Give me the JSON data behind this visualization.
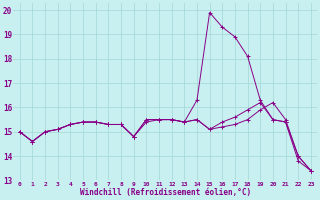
{
  "xlabel": "Windchill (Refroidissement éolien,°C)",
  "ylabel": "",
  "xlim": [
    -0.5,
    23.5
  ],
  "ylim": [
    13.0,
    20.3
  ],
  "yticks": [
    13,
    14,
    15,
    16,
    17,
    18,
    19,
    20
  ],
  "xticks": [
    0,
    1,
    2,
    3,
    4,
    5,
    6,
    7,
    8,
    9,
    10,
    11,
    12,
    13,
    14,
    15,
    16,
    17,
    18,
    19,
    20,
    21,
    22,
    23
  ],
  "bg_color": "#c8f0f0",
  "grid_color": "#a8dada",
  "line_color": "#880088",
  "line1_y": [
    15.0,
    14.6,
    15.0,
    15.1,
    15.3,
    15.4,
    15.4,
    15.3,
    15.3,
    14.8,
    15.5,
    15.5,
    15.5,
    15.4,
    16.3,
    19.9,
    19.3,
    18.9,
    18.1,
    16.3,
    15.5,
    15.4,
    13.8,
    13.4
  ],
  "line2_y": [
    15.0,
    14.6,
    15.0,
    15.1,
    15.3,
    15.4,
    15.4,
    15.3,
    15.3,
    14.8,
    15.5,
    15.5,
    15.5,
    15.4,
    15.5,
    15.1,
    15.2,
    15.3,
    15.5,
    15.9,
    16.2,
    15.5,
    14.0,
    13.4
  ],
  "line3_y": [
    15.0,
    14.6,
    15.0,
    15.1,
    15.3,
    15.4,
    15.4,
    15.3,
    15.3,
    14.8,
    15.4,
    15.5,
    15.5,
    15.4,
    15.5,
    15.1,
    15.4,
    15.6,
    15.9,
    16.2,
    15.5,
    15.4,
    14.0,
    13.4
  ]
}
